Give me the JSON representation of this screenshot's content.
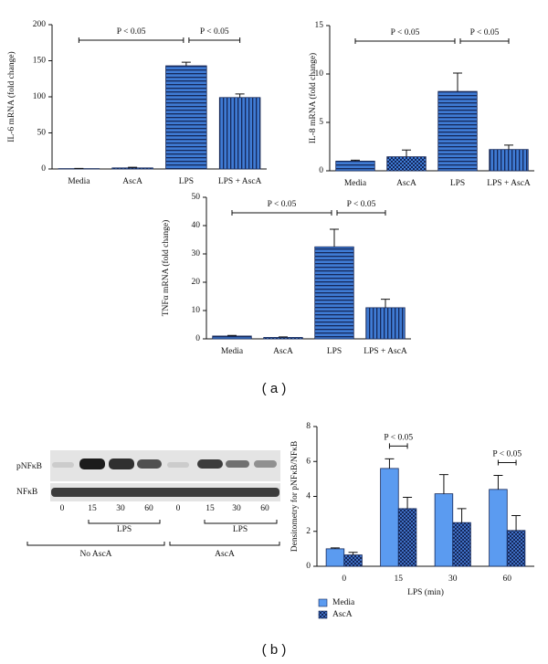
{
  "panel_labels": [
    "( a )",
    "( b )"
  ],
  "blot": {
    "row_labels": [
      "pNFκB",
      "NFκB"
    ],
    "lane_labels": [
      "0",
      "15",
      "30",
      "60",
      "0",
      "15",
      "30",
      "60"
    ],
    "treatment_labels": [
      "LPS",
      "LPS"
    ],
    "group_labels": [
      "No AscA",
      "AscA"
    ]
  },
  "chart_data": [
    {
      "type": "bar",
      "y_label": "IL-6 mRNA (fold change)",
      "categories": [
        "Media",
        "AscA",
        "LPS",
        "LPS + AscA"
      ],
      "values": [
        0.5,
        1.5,
        143,
        99
      ],
      "errors": [
        0.3,
        0.8,
        5,
        5
      ],
      "color": "#3f7bd4",
      "patterns": [
        "horizontal",
        "checker",
        "horizontal",
        "vertical"
      ],
      "ylim": [
        0,
        200
      ],
      "yticks": [
        0,
        50,
        100,
        150,
        200
      ],
      "annotations": [
        {
          "text": "P < 0.05",
          "from": "Media",
          "to": "LPS"
        },
        {
          "text": "P < 0.05",
          "from": "LPS",
          "to": "LPS + AscA"
        }
      ]
    },
    {
      "type": "bar",
      "y_label": "IL-8 mRNA (fold change)",
      "categories": [
        "Media",
        "AscA",
        "LPS",
        "LPS + AscA"
      ],
      "values": [
        1.0,
        1.45,
        8.2,
        2.2
      ],
      "errors": [
        0.1,
        0.7,
        1.9,
        0.45
      ],
      "color": "#3f7bd4",
      "patterns": [
        "horizontal",
        "checker",
        "horizontal",
        "vertical"
      ],
      "ylim": [
        0,
        15
      ],
      "yticks": [
        0,
        5,
        10,
        15
      ],
      "annotations": [
        {
          "text": "P < 0.05",
          "from": "Media",
          "to": "LPS"
        },
        {
          "text": "P < 0.05",
          "from": "LPS",
          "to": "LPS + AscA"
        }
      ]
    },
    {
      "type": "bar",
      "y_label": "TNFα mRNA (fold change)",
      "categories": [
        "Media",
        "AscA",
        "LPS",
        "LPS + AscA"
      ],
      "values": [
        1.0,
        0.5,
        32.5,
        11
      ],
      "errors": [
        0.2,
        0.2,
        6.2,
        3
      ],
      "color": "#3f7bd4",
      "patterns": [
        "horizontal",
        "checker",
        "horizontal",
        "vertical"
      ],
      "ylim": [
        0,
        50
      ],
      "yticks": [
        0,
        10,
        20,
        30,
        40,
        50
      ],
      "annotations": [
        {
          "text": "P < 0.05",
          "from": "Media",
          "to": "LPS"
        },
        {
          "text": "P < 0.05",
          "from": "LPS",
          "to": "LPS + AscA"
        }
      ]
    },
    {
      "type": "grouped_bar",
      "y_label": "Densitometry for pNFκB/NFκB",
      "x_label": "LPS (min)",
      "categories": [
        "0",
        "15",
        "30",
        "60"
      ],
      "series": [
        {
          "name": "Media",
          "color": "#5b9bf0",
          "pattern": "solid",
          "values": [
            1.0,
            5.6,
            4.15,
            4.4
          ],
          "errors": [
            0.05,
            0.55,
            1.1,
            0.8
          ]
        },
        {
          "name": "AscA",
          "color": "#3f6fc4",
          "pattern": "checker",
          "values": [
            0.65,
            3.3,
            2.5,
            2.05
          ],
          "errors": [
            0.15,
            0.65,
            0.8,
            0.85
          ]
        }
      ],
      "ylim": [
        0,
        8
      ],
      "yticks": [
        0,
        2,
        4,
        6,
        8
      ],
      "legend": "bottom-left",
      "annotations": [
        {
          "text": "P < 0.05",
          "from": "15",
          "to": "15"
        },
        {
          "text": "P < 0.05",
          "from": "60",
          "to": "60"
        }
      ]
    }
  ]
}
